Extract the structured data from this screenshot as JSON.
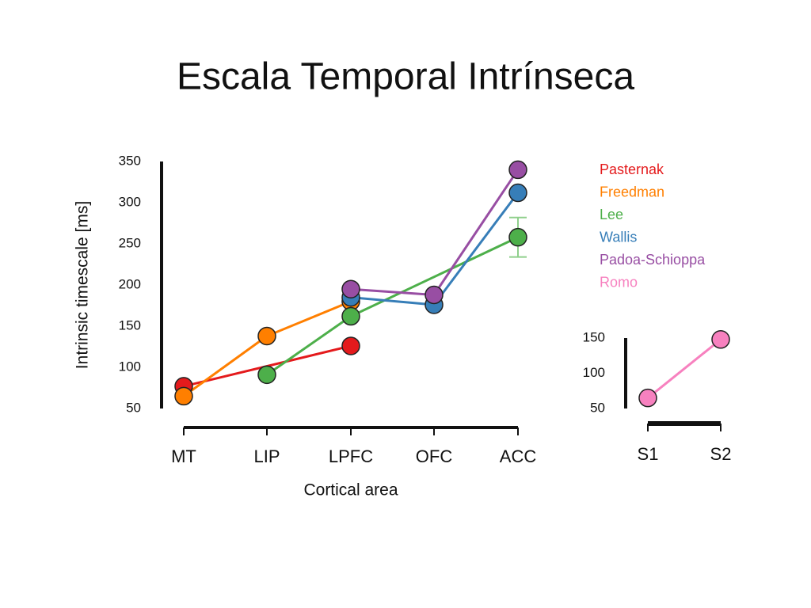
{
  "title": "Escala Temporal Intrínseca",
  "chart_data": [
    {
      "type": "line",
      "xlabel": "Cortical area",
      "ylabel": "Intrinsic timescale [ms]",
      "categories": [
        "MT",
        "LIP",
        "LPFC",
        "OFC",
        "ACC"
      ],
      "ylim": [
        50,
        350
      ],
      "yticks": [
        50,
        100,
        150,
        200,
        250,
        300,
        350
      ],
      "series": [
        {
          "name": "Pasternak",
          "color": "#e41a1c",
          "values": [
            77,
            null,
            126,
            null,
            null
          ]
        },
        {
          "name": "Freedman",
          "color": "#ff7f00",
          "values": [
            65,
            138,
            180,
            null,
            null
          ]
        },
        {
          "name": "Lee",
          "color": "#4daf4a",
          "values": [
            null,
            91,
            162,
            null,
            258
          ],
          "errors": [
            null,
            null,
            null,
            null,
            24
          ]
        },
        {
          "name": "Wallis",
          "color": "#377eb8",
          "values": [
            null,
            null,
            185,
            176,
            312
          ]
        },
        {
          "name": "Padoa-Schioppa",
          "color": "#984ea3",
          "values": [
            null,
            null,
            195,
            188,
            340
          ]
        }
      ]
    },
    {
      "type": "line",
      "categories": [
        "S1",
        "S2"
      ],
      "ylim": [
        50,
        150
      ],
      "yticks": [
        50,
        100,
        150
      ],
      "series": [
        {
          "name": "Romo",
          "color": "#f781bf",
          "values": [
            65,
            148
          ]
        }
      ]
    }
  ]
}
